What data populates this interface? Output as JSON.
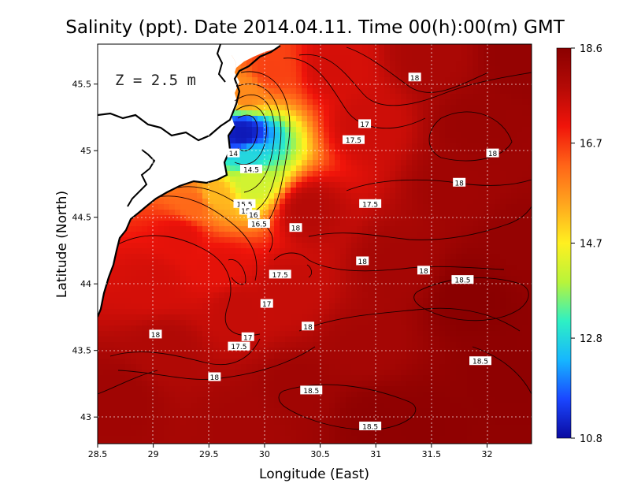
{
  "chart_data": {
    "type": "heatmap",
    "title": "Salinity (ppt). Date 2014.04.11. Time 00(h):00(m) GMT",
    "xlabel": "Longitude (East)",
    "ylabel": "Latitude (North)",
    "xlim": [
      28.5,
      32.4
    ],
    "ylim": [
      42.8,
      45.8
    ],
    "x_ticks": [
      "28.5",
      "29",
      "29.5",
      "30",
      "30.5",
      "31",
      "31.5",
      "32"
    ],
    "y_ticks": [
      "43",
      "43.5",
      "44",
      "44.5",
      "45",
      "45.5"
    ],
    "grid": true,
    "annotation": "Z = 2.5 m",
    "colorbar": {
      "range": [
        10.8,
        18.6
      ],
      "ticks": [
        "18.6",
        "16.7",
        "14.7",
        "12.8",
        "10.8"
      ],
      "colors": [
        "#0a0aa0",
        "#1a46ff",
        "#16b6ff",
        "#2ef0c4",
        "#b8f43a",
        "#fff020",
        "#ffa61e",
        "#ff6418",
        "#f0140a",
        "#b40a06",
        "#8a0000"
      ]
    },
    "points": [
      {
        "x": 29.8,
        "y": 45.12,
        "value": 11.0
      },
      {
        "x": 29.85,
        "y": 44.95,
        "value": 12.8
      },
      {
        "x": 29.88,
        "y": 44.78,
        "value": 14.2
      },
      {
        "x": 29.55,
        "y": 44.66,
        "value": 15.3
      },
      {
        "x": 29.38,
        "y": 44.6,
        "value": 16.2
      },
      {
        "x": 29.82,
        "y": 45.44,
        "value": 15.8
      },
      {
        "x": 30.05,
        "y": 45.6,
        "value": 16.6
      },
      {
        "x": 29.25,
        "y": 44.35,
        "value": 17.2
      },
      {
        "x": 29.0,
        "y": 44.0,
        "value": 17.4
      },
      {
        "x": 29.75,
        "y": 43.82,
        "value": 17.6
      },
      {
        "x": 30.92,
        "y": 45.2,
        "value": 17.5
      },
      {
        "x": 30.6,
        "y": 45.62,
        "value": 17.4
      },
      {
        "x": 30.4,
        "y": 44.55,
        "value": 17.8
      },
      {
        "x": 29.6,
        "y": 44.1,
        "value": 17.2
      },
      {
        "x": 30.2,
        "y": 43.95,
        "value": 17.6
      },
      {
        "x": 29.1,
        "y": 43.5,
        "value": 17.9
      },
      {
        "x": 30.3,
        "y": 43.2,
        "value": 18.2
      },
      {
        "x": 31.5,
        "y": 45.7,
        "value": 18.0
      },
      {
        "x": 31.9,
        "y": 45.2,
        "value": 18.3
      },
      {
        "x": 31.75,
        "y": 44.75,
        "value": 18.2
      },
      {
        "x": 31.2,
        "y": 44.15,
        "value": 18.1
      },
      {
        "x": 31.85,
        "y": 43.9,
        "value": 18.6
      },
      {
        "x": 32.2,
        "y": 43.3,
        "value": 18.5
      },
      {
        "x": 31.0,
        "y": 43.0,
        "value": 18.5
      },
      {
        "x": 31.4,
        "y": 42.95,
        "value": 18.5
      },
      {
        "x": 28.7,
        "y": 43.15,
        "value": 18.2
      },
      {
        "x": 29.8,
        "y": 42.95,
        "value": 18.1
      },
      {
        "x": 32.3,
        "y": 45.7,
        "value": 18.4
      },
      {
        "x": 32.3,
        "y": 44.3,
        "value": 18.4
      },
      {
        "x": 30.9,
        "y": 43.5,
        "value": 18.1
      }
    ],
    "contour_labels": [
      {
        "text": "18",
        "x": 31.35,
        "y": 45.55
      },
      {
        "text": "17",
        "x": 30.9,
        "y": 45.2
      },
      {
        "text": "17.5",
        "x": 30.8,
        "y": 45.08
      },
      {
        "text": "18",
        "x": 32.05,
        "y": 44.98
      },
      {
        "text": "14",
        "x": 29.72,
        "y": 44.98
      },
      {
        "text": "14.5",
        "x": 29.88,
        "y": 44.86
      },
      {
        "text": "18",
        "x": 31.75,
        "y": 44.76
      },
      {
        "text": "17.5",
        "x": 30.95,
        "y": 44.6
      },
      {
        "text": "15.5",
        "x": 29.82,
        "y": 44.6
      },
      {
        "text": "15",
        "x": 29.83,
        "y": 44.55
      },
      {
        "text": "16",
        "x": 29.9,
        "y": 44.52
      },
      {
        "text": "16.5",
        "x": 29.95,
        "y": 44.45
      },
      {
        "text": "18",
        "x": 30.28,
        "y": 44.42
      },
      {
        "text": "18",
        "x": 30.88,
        "y": 44.17
      },
      {
        "text": "18",
        "x": 31.43,
        "y": 44.1
      },
      {
        "text": "18.5",
        "x": 31.78,
        "y": 44.03
      },
      {
        "text": "17.5",
        "x": 30.14,
        "y": 44.07
      },
      {
        "text": "17",
        "x": 30.02,
        "y": 43.85
      },
      {
        "text": "18",
        "x": 30.39,
        "y": 43.68
      },
      {
        "text": "18",
        "x": 29.02,
        "y": 43.62
      },
      {
        "text": "17",
        "x": 29.85,
        "y": 43.6
      },
      {
        "text": "17.5",
        "x": 29.77,
        "y": 43.53
      },
      {
        "text": "18.5",
        "x": 31.94,
        "y": 43.42
      },
      {
        "text": "18",
        "x": 29.55,
        "y": 43.3
      },
      {
        "text": "18.5",
        "x": 30.42,
        "y": 43.2
      },
      {
        "text": "18.5",
        "x": 30.95,
        "y": 42.93
      }
    ]
  }
}
